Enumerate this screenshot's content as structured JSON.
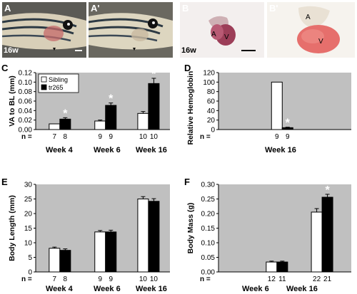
{
  "photo_panels": {
    "A": {
      "label": "A",
      "caption": "16w",
      "scale_bar": true
    },
    "A2": {
      "label": "A'"
    },
    "B": {
      "label": "B",
      "caption": "16w",
      "chamber_a": "A",
      "chamber_v": "V"
    },
    "B2": {
      "label": "B'",
      "chamber_a": "A",
      "chamber_v": "V"
    }
  },
  "colors": {
    "sibling": "#ffffff",
    "tr265": "#000000",
    "plot_bg": "#c0c0c0",
    "asterisk": "#ffffff"
  },
  "chart_data": [
    {
      "panel": "C",
      "type": "bar",
      "ylabel": "VA to BL (mm)",
      "ylim": [
        0,
        0.12
      ],
      "yticks": [
        "0.00",
        "0.02",
        "0.04",
        "0.06",
        "0.08",
        "0.10",
        "0.12"
      ],
      "categories": [
        "Week 4",
        "Week 6",
        "Week 16"
      ],
      "n_label": "n =",
      "legend": {
        "position": "top-left",
        "entries": [
          "Sibling",
          "tr265"
        ]
      },
      "series": [
        {
          "name": "Sibling",
          "values": [
            0.012,
            0.018,
            0.034
          ],
          "errors": [
            0.0,
            0.002,
            0.004
          ],
          "n": [
            "7",
            "9",
            "10"
          ]
        },
        {
          "name": "tr265",
          "values": [
            0.022,
            0.051,
            0.097
          ],
          "errors": [
            0.003,
            0.005,
            0.011
          ],
          "n": [
            "8",
            "9",
            "10"
          ]
        }
      ],
      "asterisks": [
        {
          "category": 0,
          "series": 1
        },
        {
          "category": 1,
          "series": 1
        },
        {
          "category": 2,
          "series": 1
        }
      ]
    },
    {
      "panel": "D",
      "type": "bar",
      "ylabel": "Relative Hemoglobin (%)",
      "ylim": [
        0,
        120
      ],
      "yticks": [
        "0",
        "20",
        "40",
        "60",
        "80",
        "100",
        "120"
      ],
      "categories": [
        "Week 16"
      ],
      "n_label": "n =",
      "series": [
        {
          "name": "Sibling",
          "values": [
            100
          ],
          "errors": [
            0
          ],
          "n": [
            "9"
          ]
        },
        {
          "name": "tr265",
          "values": [
            4
          ],
          "errors": [
            1
          ],
          "n": [
            "9"
          ]
        }
      ],
      "asterisks": [
        {
          "category": 0,
          "series": 1
        }
      ]
    },
    {
      "panel": "E",
      "type": "bar",
      "ylabel": "Body Length (mm)",
      "ylim": [
        0,
        30
      ],
      "yticks": [
        "0",
        "5",
        "10",
        "15",
        "20",
        "25",
        "30"
      ],
      "categories": [
        "Week 4",
        "Week 6",
        "Week 16"
      ],
      "n_label": "n =",
      "series": [
        {
          "name": "Sibling",
          "values": [
            8.1,
            13.7,
            25.0
          ],
          "errors": [
            0.4,
            0.5,
            0.8
          ],
          "n": [
            "7",
            "9",
            "10"
          ]
        },
        {
          "name": "tr265",
          "values": [
            7.4,
            13.7,
            24.2
          ],
          "errors": [
            0.5,
            0.6,
            0.9
          ],
          "n": [
            "8",
            "9",
            "10"
          ]
        }
      ],
      "asterisks": []
    },
    {
      "panel": "F",
      "type": "bar",
      "ylabel": "Body Mass (g)",
      "ylim": [
        0,
        0.3
      ],
      "yticks": [
        "0.00",
        "0.05",
        "0.10",
        "0.15",
        "0.20",
        "0.25",
        "0.30"
      ],
      "categories": [
        "Week 6",
        "Week 16"
      ],
      "n_label": "n =",
      "series": [
        {
          "name": "Sibling",
          "values": [
            0.034,
            0.205
          ],
          "errors": [
            0.003,
            0.012
          ],
          "n": [
            "12",
            "22"
          ]
        },
        {
          "name": "tr265",
          "values": [
            0.034,
            0.256
          ],
          "errors": [
            0.003,
            0.01
          ],
          "n": [
            "11",
            "21"
          ]
        }
      ],
      "asterisks": [
        {
          "category": 1,
          "series": 1
        }
      ]
    }
  ]
}
